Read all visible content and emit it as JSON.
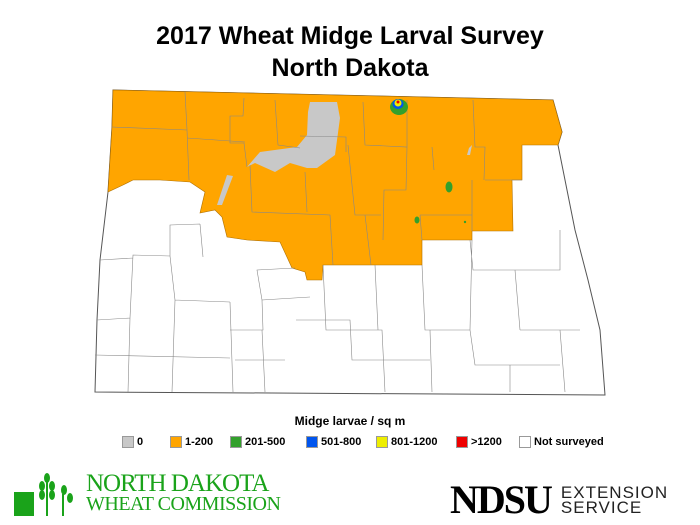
{
  "title_line1": "2017 Wheat Midge Larval Survey",
  "title_line2": "North Dakota",
  "legend": {
    "title": "Midge larvae / sq m",
    "items": [
      {
        "label": "0",
        "color": "#c8c8c8"
      },
      {
        "label": "1-200",
        "color": "#ffa500"
      },
      {
        "label": "201-500",
        "color": "#33a02c"
      },
      {
        "label": "501-800",
        "color": "#0055ee"
      },
      {
        "label": "801-1200",
        "color": "#eeee00"
      },
      {
        "label": ">1200",
        "color": "#ee0000"
      },
      {
        "label": "Not surveyed",
        "color": "#ffffff"
      }
    ]
  },
  "logos": {
    "ndwc_line1": "NORTH DAKOTA",
    "ndwc_line2": "WHEAT COMMISSION",
    "ndsu": "NDSU",
    "ndsu_line1": "EXTENSION",
    "ndsu_line2": "SERVICE"
  }
}
